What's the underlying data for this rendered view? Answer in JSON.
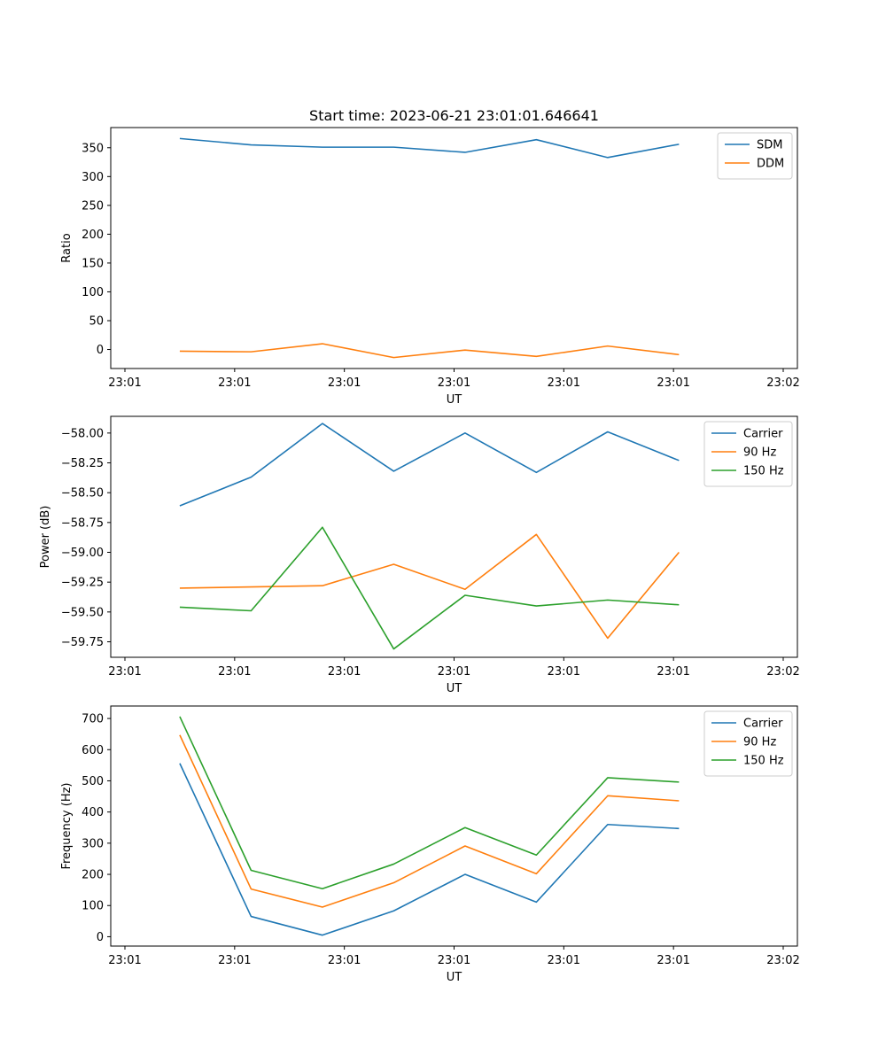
{
  "figure": {
    "title": "Start time: 2023-06-21 23:01:01.646641"
  },
  "chart_data": [
    {
      "type": "line",
      "xlabel": "UT",
      "ylabel": "Ratio",
      "x_tick_labels": [
        "23:01",
        "23:01",
        "23:01",
        "23:01",
        "23:01",
        "23:01",
        "23:02"
      ],
      "x": [
        0.5,
        1.15,
        1.8,
        2.45,
        3.1,
        3.75,
        4.4,
        5.05
      ],
      "xlim": [
        0,
        6
      ],
      "ylim": [
        -33,
        385
      ],
      "y_ticks": [
        0,
        50,
        100,
        150,
        200,
        250,
        300,
        350
      ],
      "legend_position": "upper right",
      "series": [
        {
          "name": "SDM",
          "color": "#1f77b4",
          "values": [
            366,
            355,
            351,
            351,
            342,
            364,
            333,
            356
          ]
        },
        {
          "name": "DDM",
          "color": "#ff7f0e",
          "values": [
            -3,
            -4,
            10,
            -14,
            -1,
            -12,
            6,
            -9
          ]
        }
      ]
    },
    {
      "type": "line",
      "xlabel": "UT",
      "ylabel": "Power (dB)",
      "x_tick_labels": [
        "23:01",
        "23:01",
        "23:01",
        "23:01",
        "23:01",
        "23:01",
        "23:02"
      ],
      "x": [
        0.5,
        1.15,
        1.8,
        2.45,
        3.1,
        3.75,
        4.4,
        5.05
      ],
      "xlim": [
        0,
        6
      ],
      "ylim": [
        -59.88,
        -57.86
      ],
      "y_ticks": [
        -59.75,
        -59.5,
        -59.25,
        -59.0,
        -58.75,
        -58.5,
        -58.25,
        -58.0
      ],
      "y_tick_labels": [
        "−59.75",
        "−59.50",
        "−59.25",
        "−59.00",
        "−58.75",
        "−58.50",
        "−58.25",
        "−58.00"
      ],
      "legend_position": "upper right",
      "series": [
        {
          "name": "Carrier",
          "color": "#1f77b4",
          "values": [
            -58.61,
            -58.37,
            -57.92,
            -58.32,
            -58.0,
            -58.33,
            -57.99,
            -58.23
          ]
        },
        {
          "name": "90 Hz",
          "color": "#ff7f0e",
          "values": [
            -59.3,
            -59.29,
            -59.28,
            -59.1,
            -59.31,
            -58.85,
            -59.72,
            -59.0
          ]
        },
        {
          "name": "150 Hz",
          "color": "#2ca02c",
          "values": [
            -59.46,
            -59.49,
            -58.79,
            -59.81,
            -59.36,
            -59.45,
            -59.4,
            -59.44
          ]
        }
      ]
    },
    {
      "type": "line",
      "xlabel": "UT",
      "ylabel": "Frequency (Hz)",
      "x_tick_labels": [
        "23:01",
        "23:01",
        "23:01",
        "23:01",
        "23:01",
        "23:01",
        "23:02"
      ],
      "x": [
        0.5,
        1.15,
        1.8,
        2.45,
        3.1,
        3.75,
        4.4,
        5.05
      ],
      "xlim": [
        0,
        6
      ],
      "ylim": [
        -30,
        740
      ],
      "y_ticks": [
        0,
        100,
        200,
        300,
        400,
        500,
        600,
        700
      ],
      "legend_position": "upper right",
      "series": [
        {
          "name": "Carrier",
          "color": "#1f77b4",
          "values": [
            556,
            65,
            5,
            83,
            200,
            111,
            360,
            347
          ]
        },
        {
          "name": "90 Hz",
          "color": "#ff7f0e",
          "values": [
            647,
            153,
            95,
            173,
            291,
            202,
            452,
            436
          ]
        },
        {
          "name": "150 Hz",
          "color": "#2ca02c",
          "values": [
            706,
            213,
            154,
            233,
            350,
            262,
            510,
            496
          ]
        }
      ]
    }
  ]
}
